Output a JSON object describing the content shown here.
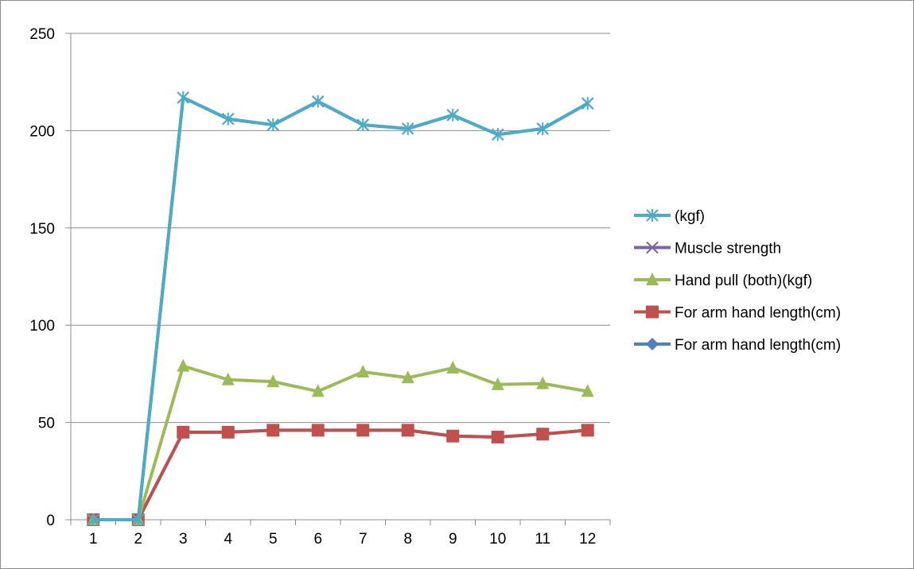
{
  "chart_data": {
    "type": "line",
    "title": "",
    "xlabel": "",
    "ylabel": "",
    "categories": [
      "1",
      "2",
      "3",
      "4",
      "5",
      "6",
      "7",
      "8",
      "9",
      "10",
      "11",
      "12"
    ],
    "ylim": [
      0,
      250
    ],
    "yticks": [
      0,
      50,
      100,
      150,
      200,
      250
    ],
    "grid": "horizontal",
    "legend_position": "right",
    "series": [
      {
        "name": "(kgf)",
        "color": "#4bacc6",
        "marker": "asterisk",
        "values": [
          0,
          0,
          217,
          206,
          203,
          215,
          203,
          201,
          208,
          198,
          201,
          214
        ]
      },
      {
        "name": "Muscle strength",
        "color": "#8064a2",
        "marker": "x",
        "values": [
          0,
          0,
          217,
          206,
          203,
          215,
          203,
          201,
          208,
          198,
          201,
          214
        ]
      },
      {
        "name": "Hand pull (both)(kgf)",
        "color": "#9bbb59",
        "marker": "triangle",
        "values": [
          0,
          0,
          79,
          72,
          71,
          66,
          76,
          73,
          78,
          69.5,
          70,
          66
        ]
      },
      {
        "name": "For arm hand length(cm)",
        "color": "#c0504d",
        "marker": "square",
        "values": [
          0,
          0,
          45,
          45,
          46,
          46,
          46,
          46,
          43,
          42.5,
          44,
          46
        ]
      },
      {
        "name": "For arm hand length(cm)",
        "color": "#4f81bd",
        "marker": "diamond",
        "values": [
          0,
          0,
          45,
          45,
          46,
          46,
          46,
          46,
          43,
          42.5,
          44,
          46
        ]
      }
    ]
  }
}
